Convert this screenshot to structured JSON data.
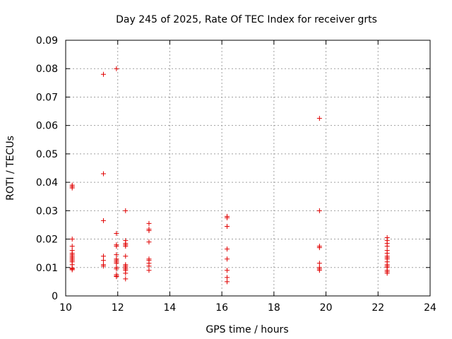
{
  "chart_data": {
    "type": "scatter",
    "title": "Day 245 of 2025, Rate Of TEC Index for receiver grts",
    "xlabel": "GPS time / hours",
    "ylabel": "ROTI / TECUs",
    "xlim": [
      10,
      24
    ],
    "ylim": [
      0,
      0.09
    ],
    "x_ticks": [
      "10",
      "12",
      "14",
      "16",
      "18",
      "20",
      "22",
      "24"
    ],
    "y_ticks": [
      "0",
      "0.01",
      "0.02",
      "0.03",
      "0.04",
      "0.05",
      "0.06",
      "0.07",
      "0.08",
      "0.09"
    ],
    "grid": true,
    "marker": "+",
    "color": "#e00000",
    "points": [
      [
        10.25,
        0.039
      ],
      [
        10.25,
        0.0385
      ],
      [
        10.25,
        0.038
      ],
      [
        10.25,
        0.02
      ],
      [
        10.25,
        0.0175
      ],
      [
        10.25,
        0.016
      ],
      [
        10.25,
        0.015
      ],
      [
        10.25,
        0.0145
      ],
      [
        10.25,
        0.014
      ],
      [
        10.25,
        0.0135
      ],
      [
        10.25,
        0.013
      ],
      [
        10.25,
        0.0125
      ],
      [
        10.25,
        0.012
      ],
      [
        10.25,
        0.011
      ],
      [
        10.25,
        0.0098
      ],
      [
        10.25,
        0.0095
      ],
      [
        10.25,
        0.0092
      ],
      [
        11.45,
        0.078
      ],
      [
        11.45,
        0.043
      ],
      [
        11.45,
        0.0265
      ],
      [
        11.45,
        0.014
      ],
      [
        11.45,
        0.0125
      ],
      [
        11.45,
        0.011
      ],
      [
        11.45,
        0.0105
      ],
      [
        11.95,
        0.08
      ],
      [
        11.95,
        0.022
      ],
      [
        11.95,
        0.018
      ],
      [
        11.95,
        0.0175
      ],
      [
        11.95,
        0.0145
      ],
      [
        11.95,
        0.013
      ],
      [
        11.95,
        0.0125
      ],
      [
        11.95,
        0.012
      ],
      [
        11.95,
        0.0115
      ],
      [
        11.95,
        0.01
      ],
      [
        11.95,
        0.0095
      ],
      [
        11.95,
        0.0075
      ],
      [
        11.95,
        0.007
      ],
      [
        11.95,
        0.0068
      ],
      [
        12.3,
        0.03
      ],
      [
        12.3,
        0.0195
      ],
      [
        12.3,
        0.0185
      ],
      [
        12.3,
        0.018
      ],
      [
        12.3,
        0.0175
      ],
      [
        12.3,
        0.014
      ],
      [
        12.3,
        0.011
      ],
      [
        12.3,
        0.0105
      ],
      [
        12.3,
        0.01
      ],
      [
        12.3,
        0.0095
      ],
      [
        12.3,
        0.009
      ],
      [
        12.3,
        0.008
      ],
      [
        12.3,
        0.006
      ],
      [
        13.2,
        0.0255
      ],
      [
        13.2,
        0.0235
      ],
      [
        13.2,
        0.023
      ],
      [
        13.2,
        0.019
      ],
      [
        13.2,
        0.013
      ],
      [
        13.2,
        0.0125
      ],
      [
        13.2,
        0.0115
      ],
      [
        13.2,
        0.0105
      ],
      [
        13.2,
        0.009
      ],
      [
        16.2,
        0.028
      ],
      [
        16.2,
        0.0275
      ],
      [
        16.2,
        0.0245
      ],
      [
        16.2,
        0.0165
      ],
      [
        16.2,
        0.013
      ],
      [
        16.2,
        0.009
      ],
      [
        16.2,
        0.0065
      ],
      [
        16.2,
        0.005
      ],
      [
        19.75,
        0.0625
      ],
      [
        19.75,
        0.03
      ],
      [
        19.75,
        0.0175
      ],
      [
        19.75,
        0.017
      ],
      [
        19.75,
        0.0115
      ],
      [
        19.75,
        0.01
      ],
      [
        19.75,
        0.0095
      ],
      [
        19.75,
        0.009
      ],
      [
        22.35,
        0.0205
      ],
      [
        22.35,
        0.0195
      ],
      [
        22.35,
        0.0185
      ],
      [
        22.35,
        0.0175
      ],
      [
        22.35,
        0.016
      ],
      [
        22.35,
        0.015
      ],
      [
        22.35,
        0.014
      ],
      [
        22.35,
        0.0135
      ],
      [
        22.35,
        0.013
      ],
      [
        22.35,
        0.012
      ],
      [
        22.35,
        0.011
      ],
      [
        22.35,
        0.0105
      ],
      [
        22.35,
        0.01
      ],
      [
        22.35,
        0.009
      ],
      [
        22.35,
        0.0085
      ],
      [
        22.35,
        0.008
      ]
    ]
  }
}
